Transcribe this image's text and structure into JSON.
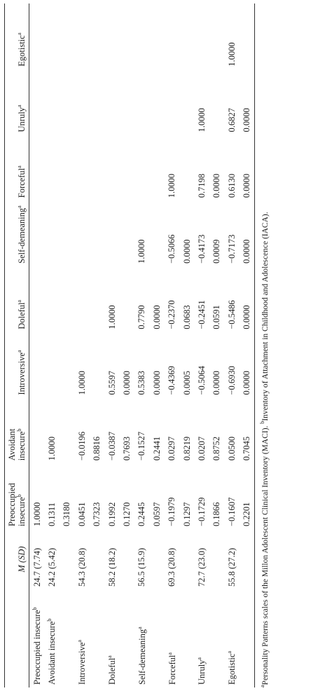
{
  "table": {
    "columns": [
      {
        "label": "M (SD)"
      },
      {
        "label": "Preoccupied insecure",
        "note": "b"
      },
      {
        "label": "Avoidant insecure",
        "note": "b"
      },
      {
        "label": "Introversive",
        "note": "a"
      },
      {
        "label": "Doleful",
        "note": "a"
      },
      {
        "label": "Self-demeaning",
        "note": "a"
      },
      {
        "label": "Forceful",
        "note": "a"
      },
      {
        "label": "Unruly",
        "note": "a"
      },
      {
        "label": "Egotistic",
        "note": "a"
      }
    ],
    "rows": [
      {
        "label": "Preoccupied insecure",
        "note": "b",
        "cells": [
          "24.7 (7.74)",
          "1.0000",
          null,
          null,
          null,
          null,
          null,
          null,
          null
        ]
      },
      {
        "label": "Avoidant insecure",
        "note": "b",
        "cells": [
          "24.2 (5.42)",
          "0.1311",
          "1.0000",
          null,
          null,
          null,
          null,
          null,
          null
        ]
      },
      {
        "cells": [
          null,
          "0.3180",
          null,
          null,
          null,
          null,
          null,
          null,
          null
        ]
      },
      {
        "label": "Introversive",
        "note": "a",
        "cells": [
          "54.3 (20.8)",
          "0.0451",
          "−0.0196",
          "1.0000",
          null,
          null,
          null,
          null,
          null
        ]
      },
      {
        "cells": [
          null,
          "0.7323",
          "0.8816",
          null,
          null,
          null,
          null,
          null,
          null
        ]
      },
      {
        "label": "Doleful",
        "note": "a",
        "cells": [
          "58.2 (18.2)",
          "0.1992",
          "−0.0387",
          "0.5597",
          "1.0000",
          null,
          null,
          null,
          null
        ]
      },
      {
        "cells": [
          null,
          "0.1270",
          "0.7693",
          "0.0000",
          null,
          null,
          null,
          null,
          null
        ]
      },
      {
        "label": "Self-demeaning",
        "note": "a",
        "cells": [
          "56.5 (15.9)",
          "0.2445",
          "−0.1527",
          "0.5383",
          "0.7790",
          "1.0000",
          null,
          null,
          null
        ]
      },
      {
        "cells": [
          null,
          "0.0597",
          "0.2441",
          "0.0000",
          "0.0000",
          null,
          null,
          null,
          null
        ]
      },
      {
        "label": "Forceful",
        "note": "a",
        "cells": [
          "69.3 (20.8)",
          "−0.1979",
          "0.0297",
          "−0.4369",
          "−0.2370",
          "−0.5066",
          "1.0000",
          null,
          null
        ]
      },
      {
        "cells": [
          null,
          "0.1297",
          "0.8219",
          "0.0005",
          "0.0683",
          "0.0000",
          null,
          null,
          null
        ]
      },
      {
        "label": "Unruly",
        "note": "a",
        "cells": [
          "72.7 (23.0)",
          "−0.1729",
          "0.0207",
          "−0.5064",
          "−0.2451",
          "−0.4173",
          "0.7198",
          "1.0000",
          null
        ]
      },
      {
        "cells": [
          null,
          "0.1866",
          "0.8752",
          "0.0000",
          "0.0591",
          "0.0009",
          "0.0000",
          null,
          null
        ]
      },
      {
        "label": "Egotistic",
        "note": "a",
        "cells": [
          "55.8 (27.2)",
          "−0.1607",
          "0.0500",
          "−0.6930",
          "−0.5486",
          "−0.7173",
          "0.6130",
          "0.6827",
          "1.0000"
        ]
      },
      {
        "cells": [
          null,
          "0.2201",
          "0.7045",
          "0.0000",
          "0.0000",
          "0.0000",
          "0.0000",
          "0.0000",
          null
        ]
      }
    ],
    "footnotes": [
      {
        "note": "a",
        "text": "Personality Patterns scales of the Millon Adolescent Clinical Inventory (MACI)."
      },
      {
        "note": "b",
        "text": "Inventory of Attachment in Childhood and Adolescence (IACA)."
      }
    ]
  }
}
